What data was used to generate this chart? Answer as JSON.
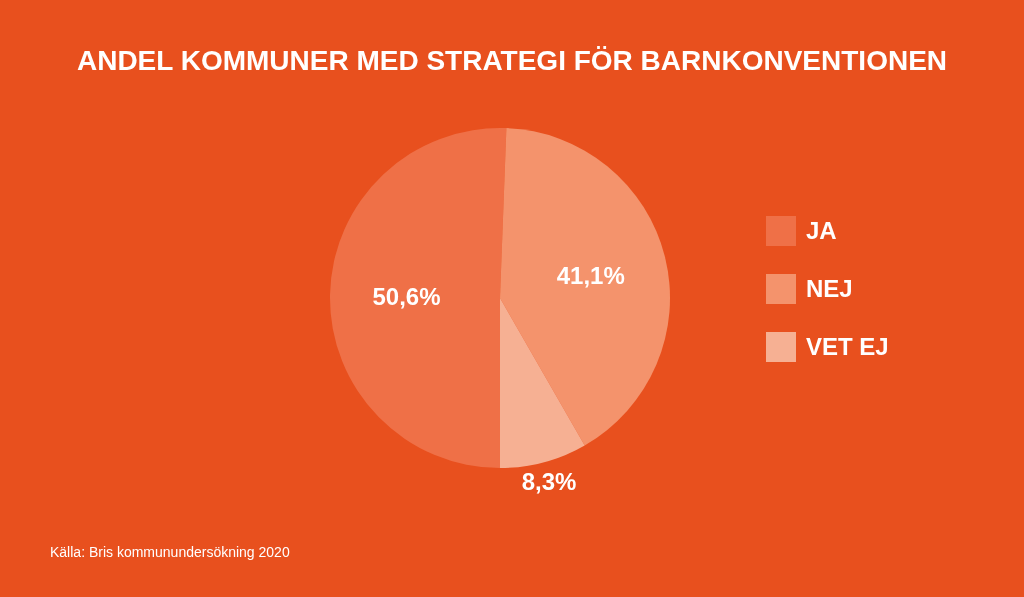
{
  "chart_data": {
    "type": "pie",
    "title": "ANDEL KOMMUNER MED STRATEGI FÖR BARNKONVENTIONEN",
    "categories": [
      "JA",
      "NEJ",
      "VET EJ"
    ],
    "values": [
      50.6,
      41.1,
      8.3
    ],
    "value_labels": [
      "50,6%",
      "41,1%",
      "8,3%"
    ],
    "colors": [
      "#ef7047",
      "#f4936c",
      "#f6b093"
    ],
    "legend": "right",
    "annotations": [
      "Källa: Bris kommunundersökning 2020"
    ]
  }
}
